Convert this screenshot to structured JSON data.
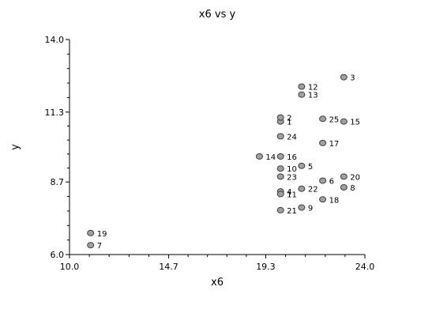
{
  "chart_data": {
    "type": "scatter",
    "title": "x6 vs y",
    "xlabel": "x6",
    "ylabel": "y",
    "xlim": [
      10.0,
      24.0
    ],
    "ylim": [
      6.0,
      14.0
    ],
    "xticks": [
      "10.0",
      "14.7",
      "19.3",
      "24.0"
    ],
    "yticks": [
      "6.0",
      "8.7",
      "11.3",
      "14.0"
    ],
    "grid": false,
    "marker_color": "#a0a0a0",
    "marker_edge_color": "#404040",
    "points": [
      {
        "label": "1",
        "x": 20.0,
        "y": 10.95
      },
      {
        "label": "2",
        "x": 20.0,
        "y": 11.1
      },
      {
        "label": "3",
        "x": 23.0,
        "y": 12.6
      },
      {
        "label": "4",
        "x": 20.0,
        "y": 8.35
      },
      {
        "label": "5",
        "x": 21.0,
        "y": 9.3
      },
      {
        "label": "6",
        "x": 22.0,
        "y": 8.75
      },
      {
        "label": "7",
        "x": 11.0,
        "y": 6.35
      },
      {
        "label": "8",
        "x": 23.0,
        "y": 8.5
      },
      {
        "label": "9",
        "x": 21.0,
        "y": 7.75
      },
      {
        "label": "10",
        "x": 20.0,
        "y": 9.2
      },
      {
        "label": "11",
        "x": 20.0,
        "y": 8.25
      },
      {
        "label": "12",
        "x": 21.0,
        "y": 12.25
      },
      {
        "label": "13",
        "x": 21.0,
        "y": 11.95
      },
      {
        "label": "14",
        "x": 19.0,
        "y": 9.65
      },
      {
        "label": "15",
        "x": 23.0,
        "y": 10.95
      },
      {
        "label": "16",
        "x": 20.0,
        "y": 9.65
      },
      {
        "label": "17",
        "x": 22.0,
        "y": 10.15
      },
      {
        "label": "18",
        "x": 22.0,
        "y": 8.05
      },
      {
        "label": "19",
        "x": 11.0,
        "y": 6.8
      },
      {
        "label": "20",
        "x": 23.0,
        "y": 8.9
      },
      {
        "label": "21",
        "x": 20.0,
        "y": 7.65
      },
      {
        "label": "22",
        "x": 21.0,
        "y": 8.45
      },
      {
        "label": "23",
        "x": 20.0,
        "y": 8.9
      },
      {
        "label": "24",
        "x": 20.0,
        "y": 10.4
      },
      {
        "label": "25",
        "x": 22.0,
        "y": 11.05
      }
    ]
  }
}
